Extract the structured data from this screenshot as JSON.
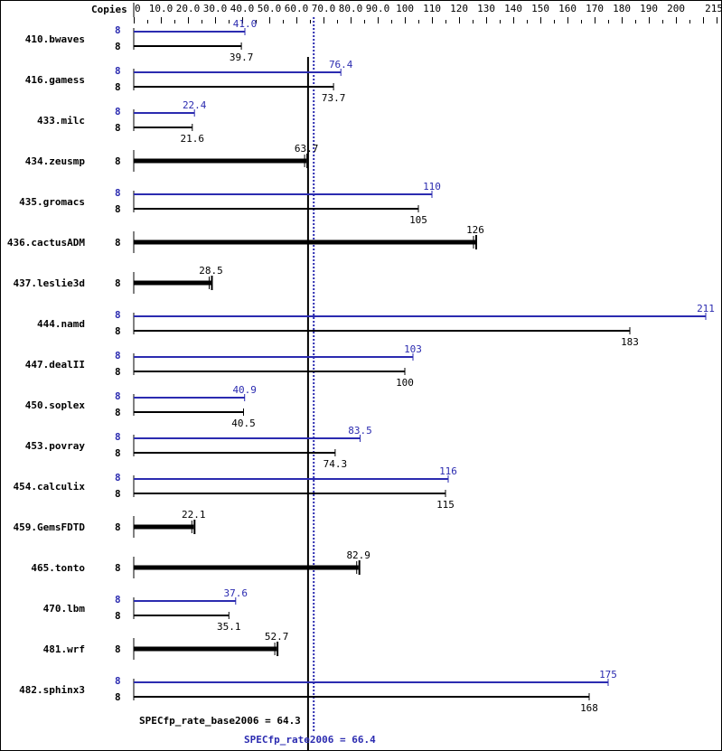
{
  "chart_data": {
    "type": "bar",
    "orientation": "horizontal",
    "axis_header": "Copies",
    "xlim": [
      0,
      215
    ],
    "x_ticks": [
      "0",
      "10.0",
      "20.0",
      "30.0",
      "40.0",
      "50.0",
      "60.0",
      "70.0",
      "80.0",
      "90.0",
      "100",
      "110",
      "120",
      "130",
      "140",
      "150",
      "160",
      "170",
      "180",
      "190",
      "200",
      "215"
    ],
    "colors": {
      "base": "#000000",
      "peak": "#2b2bb0"
    },
    "benchmarks": [
      {
        "name": "410.bwaves",
        "base_copies": "8",
        "base": 39.7,
        "base_label": "39.7",
        "peak_copies": "8",
        "peak": 41.0,
        "peak_label": "41.0"
      },
      {
        "name": "416.gamess",
        "base_copies": "8",
        "base": 73.7,
        "base_label": "73.7",
        "peak_copies": "8",
        "peak": 76.4,
        "peak_label": "76.4"
      },
      {
        "name": "433.milc",
        "base_copies": "8",
        "base": 21.6,
        "base_label": "21.6",
        "peak_copies": "8",
        "peak": 22.4,
        "peak_label": "22.4"
      },
      {
        "name": "434.zeusmp",
        "base_copies": "8",
        "base": 63.7,
        "base_label": "63.7"
      },
      {
        "name": "435.gromacs",
        "base_copies": "8",
        "base": 105,
        "base_label": "105",
        "peak_copies": "8",
        "peak": 110,
        "peak_label": "110"
      },
      {
        "name": "436.cactusADM",
        "base_copies": "8",
        "base": 126,
        "base_label": "126"
      },
      {
        "name": "437.leslie3d",
        "base_copies": "8",
        "base": 28.5,
        "base_label": "28.5"
      },
      {
        "name": "444.namd",
        "base_copies": "8",
        "base": 183,
        "base_label": "183",
        "peak_copies": "8",
        "peak": 211,
        "peak_label": "211"
      },
      {
        "name": "447.dealII",
        "base_copies": "8",
        "base": 100,
        "base_label": "100",
        "peak_copies": "8",
        "peak": 103,
        "peak_label": "103"
      },
      {
        "name": "450.soplex",
        "base_copies": "8",
        "base": 40.5,
        "base_label": "40.5",
        "peak_copies": "8",
        "peak": 40.9,
        "peak_label": "40.9"
      },
      {
        "name": "453.povray",
        "base_copies": "8",
        "base": 74.3,
        "base_label": "74.3",
        "peak_copies": "8",
        "peak": 83.5,
        "peak_label": "83.5"
      },
      {
        "name": "454.calculix",
        "base_copies": "8",
        "base": 115,
        "base_label": "115",
        "peak_copies": "8",
        "peak": 116,
        "peak_label": "116"
      },
      {
        "name": "459.GemsFDTD",
        "base_copies": "8",
        "base": 22.1,
        "base_label": "22.1"
      },
      {
        "name": "465.tonto",
        "base_copies": "8",
        "base": 82.9,
        "base_label": "82.9"
      },
      {
        "name": "470.lbm",
        "base_copies": "8",
        "base": 35.1,
        "base_label": "35.1",
        "peak_copies": "8",
        "peak": 37.6,
        "peak_label": "37.6"
      },
      {
        "name": "481.wrf",
        "base_copies": "8",
        "base": 52.7,
        "base_label": "52.7"
      },
      {
        "name": "482.sphinx3",
        "base_copies": "8",
        "base": 168,
        "base_label": "168",
        "peak_copies": "8",
        "peak": 175,
        "peak_label": "175"
      }
    ],
    "reference_lines": {
      "base": {
        "value": 64.3,
        "label": "SPECfp_rate_base2006 = 64.3"
      },
      "peak": {
        "value": 66.4,
        "label": "SPECfp_rate2006 = 66.4"
      }
    }
  }
}
